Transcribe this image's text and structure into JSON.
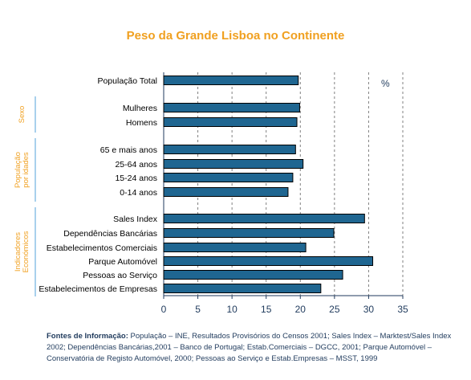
{
  "chart_data": {
    "type": "bar",
    "orientation": "horizontal",
    "title": "Peso da Grande Lisboa no Continente",
    "unit_label": "%",
    "xlim": [
      0,
      35
    ],
    "x_ticks": [
      "0",
      "5",
      "10",
      "15",
      "20",
      "25",
      "30",
      "35"
    ],
    "grid": "vertical dashed",
    "bar_color": "#1f6691",
    "categories": [
      "População Total",
      "Mulheres",
      "Homens",
      "65 e mais anos",
      "25-64 anos",
      "15-24 anos",
      "0-14 anos",
      "Sales Index",
      "Dependências Bancárias",
      "Estabelecimentos Comerciais",
      "Parque Automóvel",
      "Pessoas ao Serviço",
      "Estabelecimentos de Empresas"
    ],
    "values": [
      19.7,
      19.9,
      19.5,
      19.3,
      20.4,
      18.9,
      18.2,
      29.4,
      24.9,
      20.8,
      30.6,
      26.2,
      23.0
    ],
    "groups": [
      {
        "label": "Sexo"
      },
      {
        "label": "População por idades"
      },
      {
        "label": "Indicadores Económicos"
      }
    ]
  },
  "footnote": {
    "lead": "Fontes de Informação:",
    "text": " População – INE, Resultados Provisórios do Censos 2001; Sales Index – Marktest/Sales Index 2002; Dependências Bancárias,2001 – Banco de Portugal; Estab.Comerciais – DGCC, 2001; Parque Automóvel – Conservatória de Registo Automóvel, 2000; Pessoas ao Serviço e Estab.Empresas – MSST, 1999"
  }
}
